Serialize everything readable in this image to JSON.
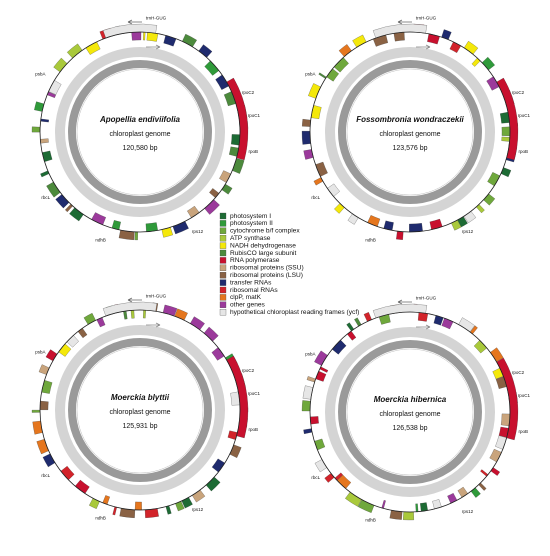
{
  "maps": [
    {
      "species": "Apopellia endiviifolia",
      "subtitle": "chloroplast genome",
      "size": "120,580 bp",
      "genes": [
        "rpoC2",
        "rpoC1",
        "rpoB",
        "psbA",
        "rbcL",
        "ndhB",
        "trnH-GUG",
        "rps12"
      ]
    },
    {
      "species": "Fossombronia wondraczekii",
      "subtitle": "chloroplast genome",
      "size": "123,576 bp",
      "genes": [
        "rpoC2",
        "rpoC1",
        "rpoB",
        "psbA",
        "rbcL",
        "ndhB",
        "trnH-GUG",
        "rps12"
      ]
    },
    {
      "species": "Moerckia blyttii",
      "subtitle": "chloroplast genome",
      "size": "125,931 bp",
      "genes": [
        "rpoC2",
        "rpoC1",
        "rpoB",
        "psbA",
        "rbcL",
        "ndhB",
        "trnH-GUG",
        "rps12"
      ]
    },
    {
      "species": "Moerckia hibernica",
      "subtitle": "chloroplast genome",
      "size": "126,538 bp",
      "genes": [
        "rpoC2",
        "rpoC1",
        "rpoB",
        "psbA",
        "rbcL",
        "ndhB",
        "trnH-GUG",
        "rps12"
      ]
    }
  ],
  "legend": [
    {
      "label": "photosystem I",
      "color": "#1d6b34"
    },
    {
      "label": "photosystem II",
      "color": "#2f9a3a"
    },
    {
      "label": "cytochrome b/f complex",
      "color": "#6fa83c"
    },
    {
      "label": "ATP synthase",
      "color": "#a9c93b"
    },
    {
      "label": "NADH dehydrogenase",
      "color": "#f4e80a"
    },
    {
      "label": "RubisCO large subunit",
      "color": "#4c8a3c"
    },
    {
      "label": "RNA polymerase",
      "color": "#c8102e"
    },
    {
      "label": "ribosomal proteins (SSU)",
      "color": "#c9a47c"
    },
    {
      "label": "ribosomal proteins (LSU)",
      "color": "#8a6244"
    },
    {
      "label": "transfer RNAs",
      "color": "#1f2b6e"
    },
    {
      "label": "ribosomal RNAs",
      "color": "#d2232a"
    },
    {
      "label": "clpP, matK",
      "color": "#e5761e"
    },
    {
      "label": "other genes",
      "color": "#9b3a9b"
    },
    {
      "label": "hypothetical chloroplast reading frames (ycf)",
      "color": "#e6e6e6"
    }
  ]
}
